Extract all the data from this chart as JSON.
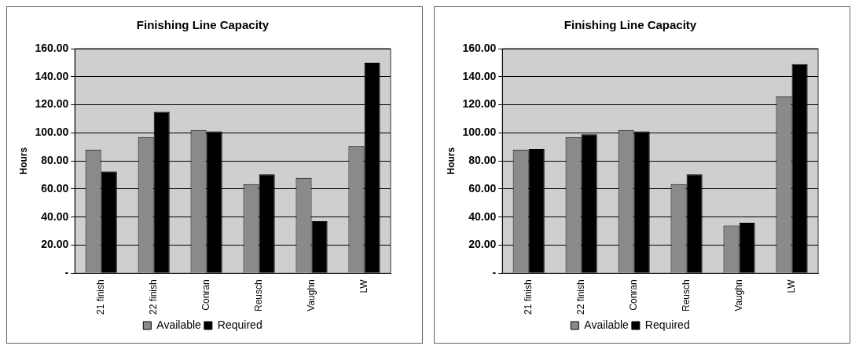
{
  "chart_data": [
    {
      "type": "bar",
      "title": "Finishing Line Capacity",
      "ylabel": "Hours",
      "categories": [
        "21 finish",
        "22 finish",
        "Conran",
        "Reusch",
        "Vaughn",
        "LW"
      ],
      "series": [
        {
          "name": "Available",
          "color": "#8a8a8a",
          "values": [
            88,
            97,
            102,
            63.5,
            68,
            90.5
          ]
        },
        {
          "name": "Required",
          "color": "#000000",
          "values": [
            72.5,
            115,
            101,
            70.5,
            37,
            150
          ]
        }
      ],
      "ylim": [
        0,
        160
      ],
      "yticks": [
        {
          "value": 0,
          "label": "-"
        },
        {
          "value": 20,
          "label": "20.00"
        },
        {
          "value": 40,
          "label": "40.00"
        },
        {
          "value": 60,
          "label": "60.00"
        },
        {
          "value": 80,
          "label": "80.00"
        },
        {
          "value": 100,
          "label": "100.00"
        },
        {
          "value": 120,
          "label": "120.00"
        },
        {
          "value": 140,
          "label": "140.00"
        },
        {
          "value": 160,
          "label": "160.00"
        }
      ],
      "grid": "y",
      "legend": "bottom"
    },
    {
      "type": "bar",
      "title": "Finishing Line Capacity",
      "ylabel": "Hours",
      "categories": [
        "21 finish",
        "22 finish",
        "Conran",
        "Reusch",
        "Vaughn",
        "LW"
      ],
      "series": [
        {
          "name": "Available",
          "color": "#8a8a8a",
          "values": [
            88,
            97,
            102,
            63.5,
            34,
            126
          ]
        },
        {
          "name": "Required",
          "color": "#000000",
          "values": [
            88.5,
            99,
            101,
            70.5,
            36,
            149
          ]
        }
      ],
      "ylim": [
        0,
        160
      ],
      "yticks": [
        {
          "value": 0,
          "label": "-"
        },
        {
          "value": 20,
          "label": "20.00"
        },
        {
          "value": 40,
          "label": "40.00"
        },
        {
          "value": 60,
          "label": "60.00"
        },
        {
          "value": 80,
          "label": "80.00"
        },
        {
          "value": 100,
          "label": "100.00"
        },
        {
          "value": 120,
          "label": "120.00"
        },
        {
          "value": 140,
          "label": "140.00"
        },
        {
          "value": 160,
          "label": "160.00"
        }
      ],
      "grid": "y",
      "legend": "bottom"
    }
  ]
}
